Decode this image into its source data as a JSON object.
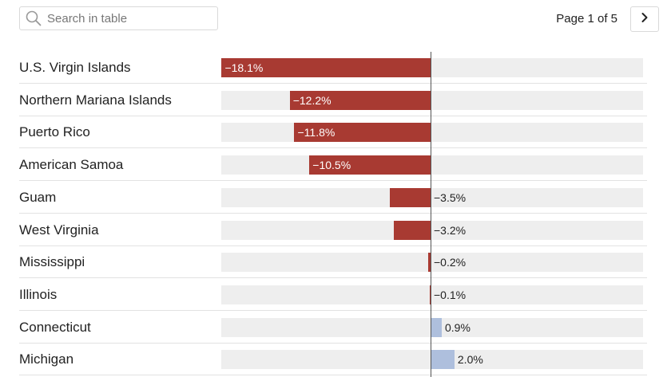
{
  "search": {
    "placeholder": "Search in table"
  },
  "pagination": {
    "label": "Page 1 of 5"
  },
  "icons": {
    "search": "search-icon",
    "next": "chevron-right-icon"
  },
  "colors": {
    "negative": "#a83a32",
    "positive": "#aebfdd",
    "track": "#eeeeee"
  },
  "chart_data": {
    "type": "bar",
    "orientation": "horizontal",
    "xlim": [
      -18.1,
      18.3
    ],
    "categories": [
      "U.S. Virgin Islands",
      "Northern Mariana Islands",
      "Puerto Rico",
      "American Samoa",
      "Guam",
      "West Virginia",
      "Mississippi",
      "Illinois",
      "Connecticut",
      "Michigan"
    ],
    "values": [
      -18.1,
      -12.2,
      -11.8,
      -10.5,
      -3.5,
      -3.2,
      -0.2,
      -0.1,
      0.9,
      2.0
    ],
    "labels": [
      "−18.1%",
      "−12.2%",
      "−11.8%",
      "−10.5%",
      "−3.5%",
      "−3.2%",
      "−0.2%",
      "−0.1%",
      "0.9%",
      "2.0%"
    ]
  }
}
